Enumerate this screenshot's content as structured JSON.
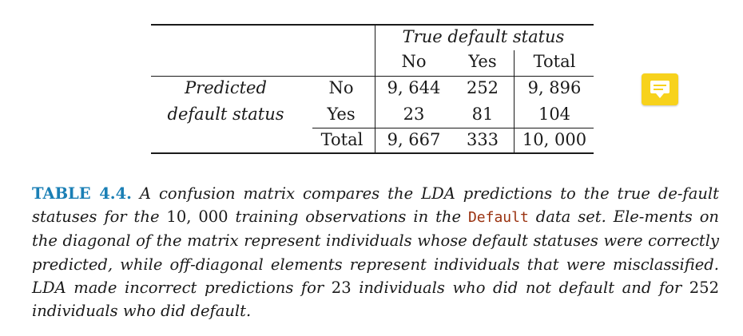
{
  "table": {
    "header": {
      "group_title": "True default status",
      "col_no": "No",
      "col_yes": "Yes",
      "col_total": "Total"
    },
    "row_header": {
      "line1": "Predicted",
      "line2": "default status"
    },
    "rows": [
      {
        "label": "No",
        "no": "9, 644",
        "yes": "252",
        "total": "9, 896"
      },
      {
        "label": "Yes",
        "no": "23",
        "yes": "81",
        "total": "104"
      },
      {
        "label": "Total",
        "no": "9, 667",
        "yes": "333",
        "total": "10, 000"
      }
    ]
  },
  "caption": {
    "label": "TABLE 4.4.",
    "part1": " A confusion matrix compares the LDA predictions to the true de-fault statuses for the ",
    "num1": "10, 000",
    "part2": " training observations in the ",
    "code": "Default",
    "part3": " data set. Ele-ments on the diagonal of the matrix represent individuals whose default statuses were correctly predicted, while off-diagonal elements represent individuals that were misclassified. LDA made incorrect predictions for ",
    "num2": "23",
    "part4": " individuals who did not default and for ",
    "num3": "252",
    "part5": " individuals who did default."
  },
  "icons": {
    "comment": "note-comment-icon"
  },
  "colors": {
    "label_blue": "#1a7fb5",
    "code_rust": "#9a3210",
    "icon_yellow": "#f7d21c"
  }
}
